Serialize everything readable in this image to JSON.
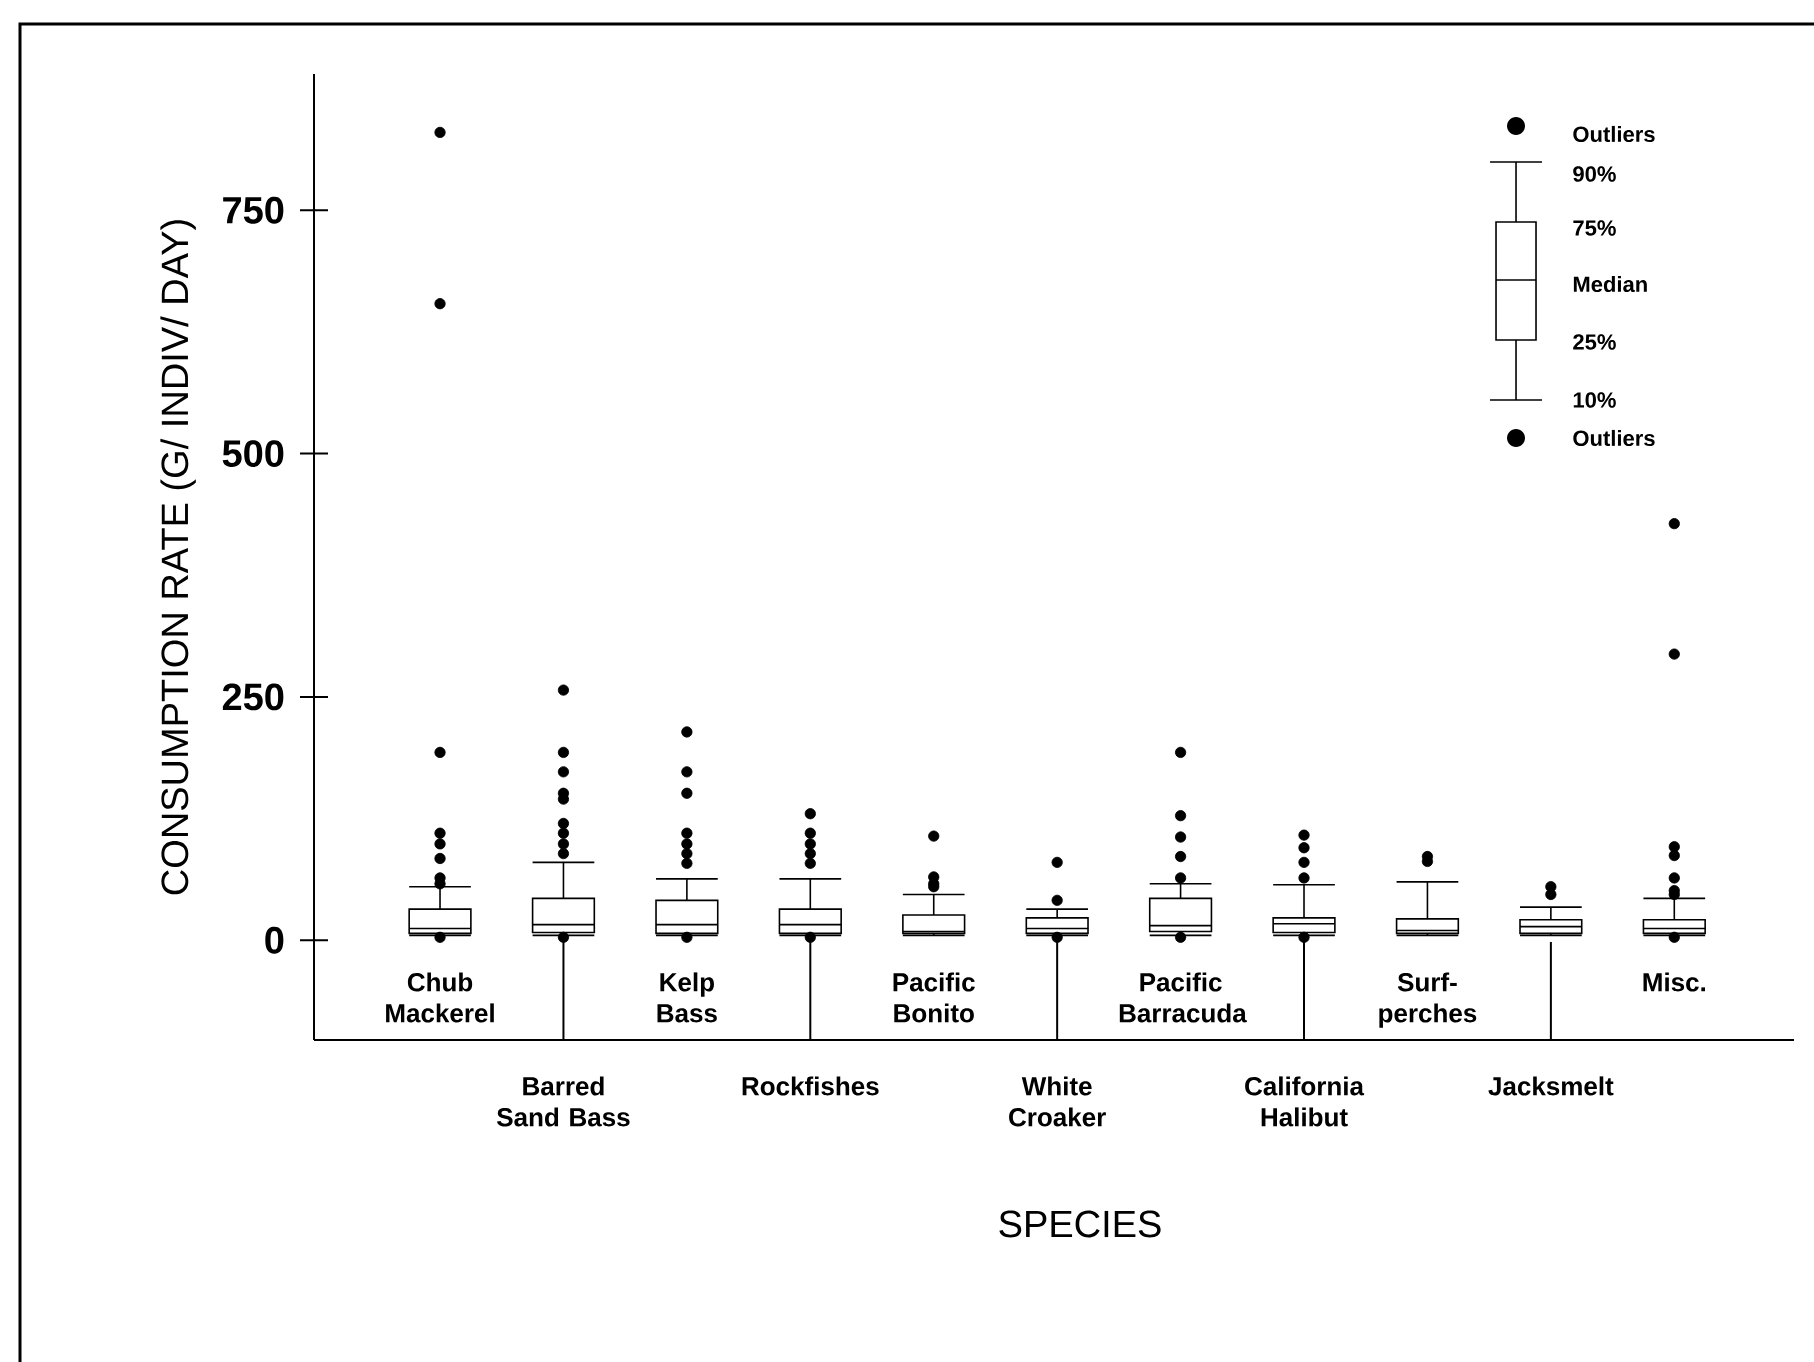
{
  "chart_data": {
    "type": "box",
    "xlabel": "SPECIES",
    "ylabel": "CONSUMPTION RATE (G/ INDIV/ DAY)",
    "categories": [
      "Chub Mackerel",
      "Barred Sand Bass",
      "Kelp Bass",
      "Rockfishes",
      "Pacific Bonito",
      "White Croaker",
      "Pacific Barracuda",
      "California Halibut",
      "Surf-perches",
      "Jacksmelt",
      "Misc."
    ],
    "boxes": [
      {
        "low": 5,
        "q1": 7,
        "median": 12,
        "q3": 32,
        "high": 55,
        "outliers": [
          830,
          654,
          193,
          110,
          99,
          84,
          64,
          58,
          3
        ]
      },
      {
        "low": 5,
        "q1": 8,
        "median": 16,
        "q3": 43,
        "high": 80,
        "outliers": [
          257,
          193,
          173,
          151,
          145,
          120,
          110,
          99,
          89,
          3
        ]
      },
      {
        "low": 5,
        "q1": 7,
        "median": 16,
        "q3": 41,
        "high": 63,
        "outliers": [
          214,
          173,
          151,
          110,
          99,
          89,
          79,
          3
        ]
      },
      {
        "low": 5,
        "q1": 7,
        "median": 16,
        "q3": 32,
        "high": 63,
        "outliers": [
          130,
          110,
          99,
          89,
          79,
          3
        ]
      },
      {
        "low": 5,
        "q1": 7,
        "median": 9,
        "q3": 26,
        "high": 47,
        "outliers": [
          107,
          65,
          58,
          55
        ]
      },
      {
        "low": 5,
        "q1": 7,
        "median": 12,
        "q3": 23,
        "high": 32,
        "outliers": [
          80,
          41,
          3
        ]
      },
      {
        "low": 5,
        "q1": 9,
        "median": 15,
        "q3": 43,
        "high": 58,
        "outliers": [
          193,
          128,
          106,
          86,
          64,
          3
        ]
      },
      {
        "low": 5,
        "q1": 8,
        "median": 17,
        "q3": 23,
        "high": 57,
        "outliers": [
          108,
          95,
          80,
          64,
          3
        ]
      },
      {
        "low": 5,
        "q1": 7,
        "median": 10,
        "q3": 22,
        "high": 60,
        "outliers": [
          86,
          81
        ]
      },
      {
        "low": 5,
        "q1": 7,
        "median": 14,
        "q3": 21,
        "high": 34,
        "outliers": [
          55,
          47
        ]
      },
      {
        "low": 5,
        "q1": 7,
        "median": 12,
        "q3": 21,
        "high": 43,
        "outliers": [
          428,
          294,
          96,
          87,
          64,
          51,
          47,
          3
        ]
      }
    ],
    "ylim": [
      -102.5,
      890
    ],
    "yticks": [
      0,
      250,
      500,
      750
    ],
    "annotations": [
      "Outliers",
      "90%",
      "75%",
      "Median",
      "25%",
      "10%",
      "Outliers"
    ]
  }
}
